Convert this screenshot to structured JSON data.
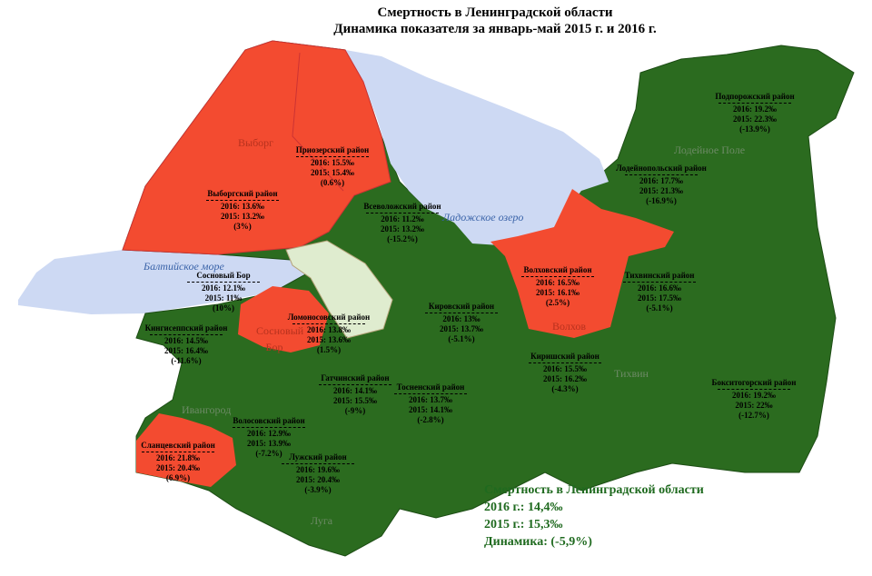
{
  "header": {
    "title": "Смертность в Ленинградской области",
    "subtitle": "Динамика показателя за январь-май 2015 г. и 2016 г."
  },
  "districts": [
    {
      "name": "Подпорожский район",
      "y2016": "2016: 19.2‰",
      "y2015": "2015: 22.3‰",
      "change": "(-13.9%)"
    },
    {
      "name": "Лодейнопольский район",
      "y2016": "2016: 17.7‰",
      "y2015": "2015: 21.3‰",
      "change": "(-16.9%)"
    },
    {
      "name": "Приозерский район",
      "y2016": "2016: 15.5‰",
      "y2015": "2015: 15.4‰",
      "change": "(0.6%)"
    },
    {
      "name": "Выборгский район",
      "y2016": "2016: 13.6‰",
      "y2015": "2015: 13.2‰",
      "change": "(3%)"
    },
    {
      "name": "Всеволожский район",
      "y2016": "2016: 11.2‰",
      "y2015": "2015: 13.2‰",
      "change": "(-15.2%)"
    },
    {
      "name": "Волховский район",
      "y2016": "2016: 16.5‰",
      "y2015": "2015: 16.1‰",
      "change": "(2.5%)"
    },
    {
      "name": "Тихвинский район",
      "y2016": "2016: 16.6‰",
      "y2015": "2015: 17.5‰",
      "change": "(-5.1%)"
    },
    {
      "name": "Сосновый Бор",
      "y2016": "2016: 12.1‰",
      "y2015": "2015: 11‰",
      "change": "(10%)"
    },
    {
      "name": "Ломоносовский район",
      "y2016": "2016: 13.8‰",
      "y2015": "2015: 13.6‰",
      "change": "(1.5%)"
    },
    {
      "name": "Кировский район",
      "y2016": "2016: 13‰",
      "y2015": "2015: 13.7‰",
      "change": "(-5.1%)"
    },
    {
      "name": "Кингисеппский район",
      "y2016": "2016: 14.5‰",
      "y2015": "2015: 16.4‰",
      "change": "(-11.6%)"
    },
    {
      "name": "Киришский район",
      "y2016": "2016: 15.5‰",
      "y2015": "2015: 16.2‰",
      "change": "(-4.3%)"
    },
    {
      "name": "Бокситогорский район",
      "y2016": "2016: 19.2‰",
      "y2015": "2015: 22‰",
      "change": "(-12.7%)"
    },
    {
      "name": "Гатчинский район",
      "y2016": "2016: 14.1‰",
      "y2015": "2015: 15.5‰",
      "change": "(-9%)"
    },
    {
      "name": "Тосненский район",
      "y2016": "2016: 13.7‰",
      "y2015": "2015: 14.1‰",
      "change": "(-2.8%)"
    },
    {
      "name": "Волосовский район",
      "y2016": "2016: 12.9‰",
      "y2015": "2015: 13.9‰",
      "change": "(-7.2%)"
    },
    {
      "name": "Сланцевский район",
      "y2016": "2016: 21.8‰",
      "y2015": "2015: 20.4‰",
      "change": "(6.9%)"
    },
    {
      "name": "Лужский район",
      "y2016": "2016: 19.6‰",
      "y2015": "2015: 20.4‰",
      "change": "(-3.9%)"
    }
  ],
  "places": [
    "Выборг",
    "Лодейное Поле",
    "Ладожское озеро",
    "Балтийское море",
    "Волхов",
    "Тихвин",
    "Сосновый Бор",
    "Ивангород",
    "Луга"
  ],
  "summary": {
    "title": "Смертность в Ленинградской области",
    "line2016": "2016 г.: 14,4‰",
    "line2015": "2015 г.: 15,3‰",
    "change": "Динамика: (-5,9%)"
  }
}
